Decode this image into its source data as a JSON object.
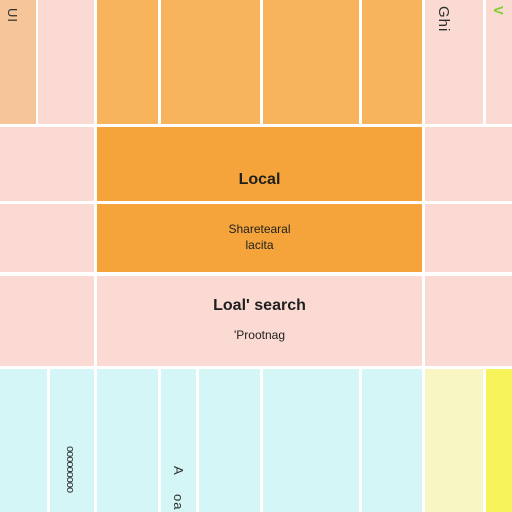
{
  "top_left": {
    "rotated_label": "UI"
  },
  "top_right": {
    "rotated_label": "Ghi",
    "badge": "V"
  },
  "local_tile": {
    "title": "Local",
    "line1": "Sharetearal",
    "line2": "lacita"
  },
  "search_tile": {
    "title": "Loal' search",
    "subtitle": "'Prootnag"
  },
  "bottom_left": {
    "rotated_label": "ooooooooo"
  },
  "bottom_mid": {
    "rotated_label_a": "A",
    "rotated_label_b": "oa"
  },
  "colors": {
    "peach": "#f7c59a",
    "orange": "#f4a43a",
    "pink": "#fadad3",
    "cyan": "#d4f6f6",
    "cream": "#f8f6c2",
    "yellow": "#f6f45a"
  }
}
